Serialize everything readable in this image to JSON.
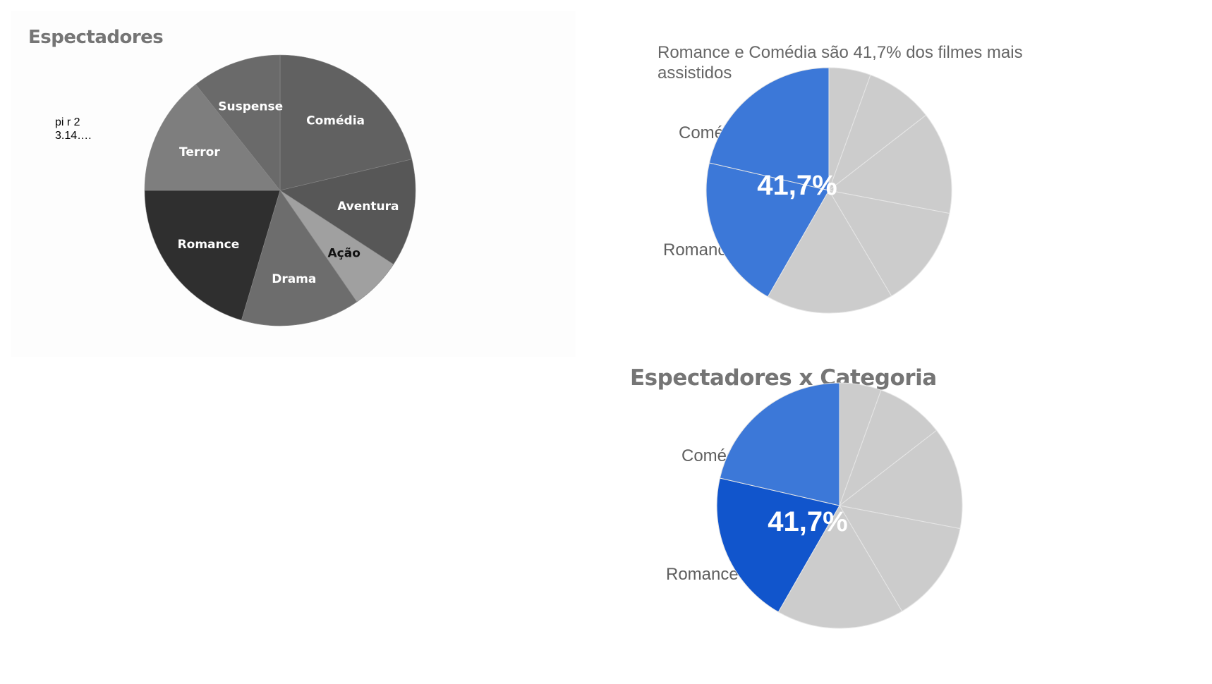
{
  "colors": {
    "highlight": "#3c78d8",
    "highlight_dark": "#1155cc",
    "muted": "#cccccc",
    "slice_text_light": "#ffffff",
    "slice_text_dark": "#111111"
  },
  "note": {
    "line1": "pi r 2",
    "line2": "3.14…."
  },
  "right_top": {
    "subtitle": "Romance e Comédia são 41,7% dos filmes mais assistidos",
    "label_comedia": "Comédia",
    "label_romance": "Romance",
    "percent": "41,7%"
  },
  "right_bottom": {
    "title": "Espectadores x Categoria",
    "label_comedia": "Comédia",
    "label_romance": "Romance",
    "percent": "41,7%"
  },
  "chart_data": [
    {
      "type": "pie",
      "title": "Espectadores",
      "start_angle_deg": 0,
      "direction": "clockwise",
      "slices": [
        {
          "label": "Comédia",
          "share": 0.213,
          "color": "#616161"
        },
        {
          "label": "Aventura",
          "share": 0.129,
          "color": "#575757"
        },
        {
          "label": "Ação",
          "share": 0.062,
          "color": "#a0a0a0",
          "label_dark": true
        },
        {
          "label": "Drama",
          "share": 0.142,
          "color": "#6d6d6d"
        },
        {
          "label": "Romance",
          "share": 0.204,
          "color": "#2f2f2f"
        },
        {
          "label": "Terror",
          "share": 0.143,
          "color": "#7e7e7e"
        },
        {
          "label": "Suspense",
          "share": 0.107,
          "color": "#6a6a6a"
        }
      ]
    },
    {
      "type": "pie",
      "title": "Romance e Comédia são 41,7% dos filmes mais assistidos",
      "highlight_total": "41,7%",
      "slices": [
        {
          "share": 0.055,
          "highlight": false
        },
        {
          "share": 0.09,
          "highlight": false
        },
        {
          "share": 0.135,
          "highlight": false
        },
        {
          "share": 0.135,
          "highlight": false
        },
        {
          "share": 0.168,
          "highlight": false
        },
        {
          "label": "Romance",
          "share": 0.203,
          "highlight": true
        },
        {
          "label": "Comédia",
          "share": 0.214,
          "highlight": true
        }
      ]
    },
    {
      "type": "pie",
      "title": "Espectadores x Categoria",
      "highlight_total": "41,7%",
      "slices": [
        {
          "share": 0.055,
          "highlight": false
        },
        {
          "share": 0.09,
          "highlight": false
        },
        {
          "share": 0.135,
          "highlight": false
        },
        {
          "share": 0.135,
          "highlight": false
        },
        {
          "share": 0.168,
          "highlight": false
        },
        {
          "label": "Romance",
          "share": 0.203,
          "highlight": true,
          "color": "#1155cc"
        },
        {
          "label": "Comédia",
          "share": 0.214,
          "highlight": true,
          "color": "#3c78d8"
        }
      ]
    }
  ]
}
